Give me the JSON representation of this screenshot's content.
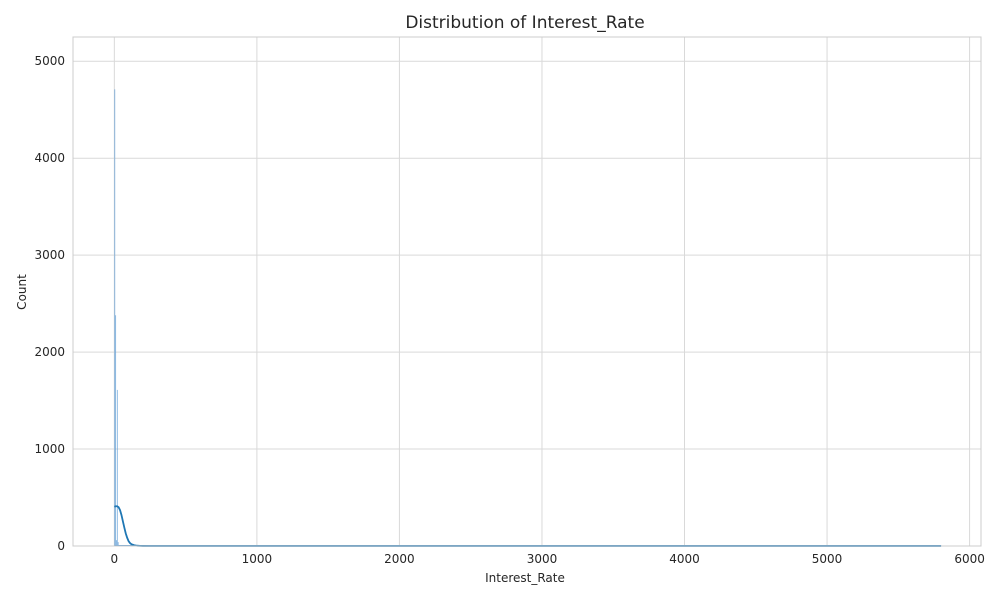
{
  "chart_data": {
    "type": "bar",
    "subtype": "histogram-with-kde",
    "title": "Distribution of Interest_Rate",
    "xlabel": "Interest_Rate",
    "ylabel": "Count",
    "xlim": [
      -290,
      6080
    ],
    "ylim": [
      0,
      5250
    ],
    "xticks": [
      0,
      1000,
      2000,
      3000,
      4000,
      5000,
      6000
    ],
    "yticks": [
      0,
      1000,
      2000,
      3000,
      4000,
      5000
    ],
    "grid": true,
    "legend": "none",
    "bar_color": "#5b9bd5",
    "line_color": "#1f77b4",
    "histogram": {
      "bins": [
        {
          "x0": 0,
          "x1": 6,
          "count": 4710
        },
        {
          "x0": 6,
          "x1": 12,
          "count": 2380
        },
        {
          "x0": 12,
          "x1": 18,
          "count": 60
        },
        {
          "x0": 18,
          "x1": 24,
          "count": 1610
        },
        {
          "x0": 24,
          "x1": 30,
          "count": 40
        }
      ],
      "range": [
        0,
        5800
      ]
    },
    "kde": {
      "x": [
        0,
        10,
        20,
        30,
        40,
        50,
        60,
        70,
        80,
        90,
        100,
        110,
        120,
        140,
        160,
        180,
        200,
        250,
        300,
        1000,
        2000,
        3000,
        4000,
        5000,
        5800
      ],
      "y": [
        405,
        410,
        410,
        400,
        370,
        320,
        255,
        190,
        130,
        85,
        50,
        30,
        18,
        8,
        3,
        1,
        0.5,
        0,
        0,
        0,
        0,
        0,
        0,
        0,
        0
      ]
    }
  }
}
